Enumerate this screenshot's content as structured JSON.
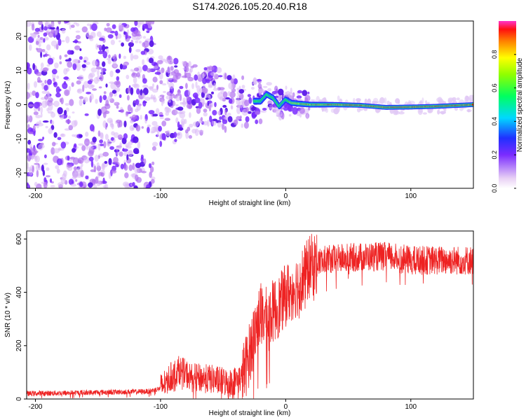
{
  "title": "S174.2026.105.20.40.R18",
  "chart_data": [
    {
      "type": "heatmap",
      "xlabel": "Height of straight line (km)",
      "ylabel": "Frequency (Hz)",
      "xlim": [
        -207,
        150
      ],
      "ylim": [
        -24.5,
        24.5
      ],
      "xticks": [
        -200,
        -100,
        0,
        100
      ],
      "yticks": [
        -20,
        -10,
        0,
        10,
        20
      ],
      "colorbar": {
        "label": "Normalized spectral amplitude",
        "range": [
          0,
          1
        ],
        "ticks": [
          "0.0",
          "0.2",
          "0.4",
          "0.6",
          "0.8"
        ],
        "tick_values": [
          0.0,
          0.2,
          0.4,
          0.6,
          0.8
        ]
      },
      "ridge": {
        "description": "strong spectral line near 0 Hz",
        "points": [
          [
            -20,
            1.0
          ],
          [
            -15,
            3.0
          ],
          [
            -10,
            2.0
          ],
          [
            -5,
            -0.5
          ],
          [
            0,
            1.5
          ],
          [
            5,
            0.5
          ],
          [
            10,
            0.3
          ],
          [
            20,
            0.0
          ],
          [
            40,
            0.0
          ],
          [
            60,
            -0.2
          ],
          [
            80,
            -0.8
          ],
          [
            100,
            -0.7
          ],
          [
            120,
            -0.5
          ],
          [
            150,
            0.0
          ]
        ]
      }
    },
    {
      "type": "line",
      "xlabel": "Height of straight line (km)",
      "ylabel": "SNR (10 * v/v)",
      "xlim": [
        -207,
        150
      ],
      "ylim": [
        0,
        630
      ],
      "xticks": [
        -200,
        -100,
        0,
        100
      ],
      "yticks": [
        0,
        200,
        400,
        600
      ],
      "series": [
        {
          "name": "SNR",
          "color": "#ee2222",
          "envelope_x": [
            -207,
            -150,
            -110,
            -100,
            -95,
            -85,
            -75,
            -60,
            -45,
            -35,
            -30,
            -25,
            -20,
            -15,
            -10,
            -5,
            0,
            10,
            20,
            30,
            50,
            80,
            100,
            150
          ],
          "envelope_y": [
            20,
            25,
            28,
            40,
            70,
            110,
            80,
            75,
            60,
            80,
            150,
            250,
            320,
            300,
            330,
            350,
            390,
            430,
            500,
            520,
            530,
            535,
            520,
            520
          ]
        }
      ]
    }
  ]
}
